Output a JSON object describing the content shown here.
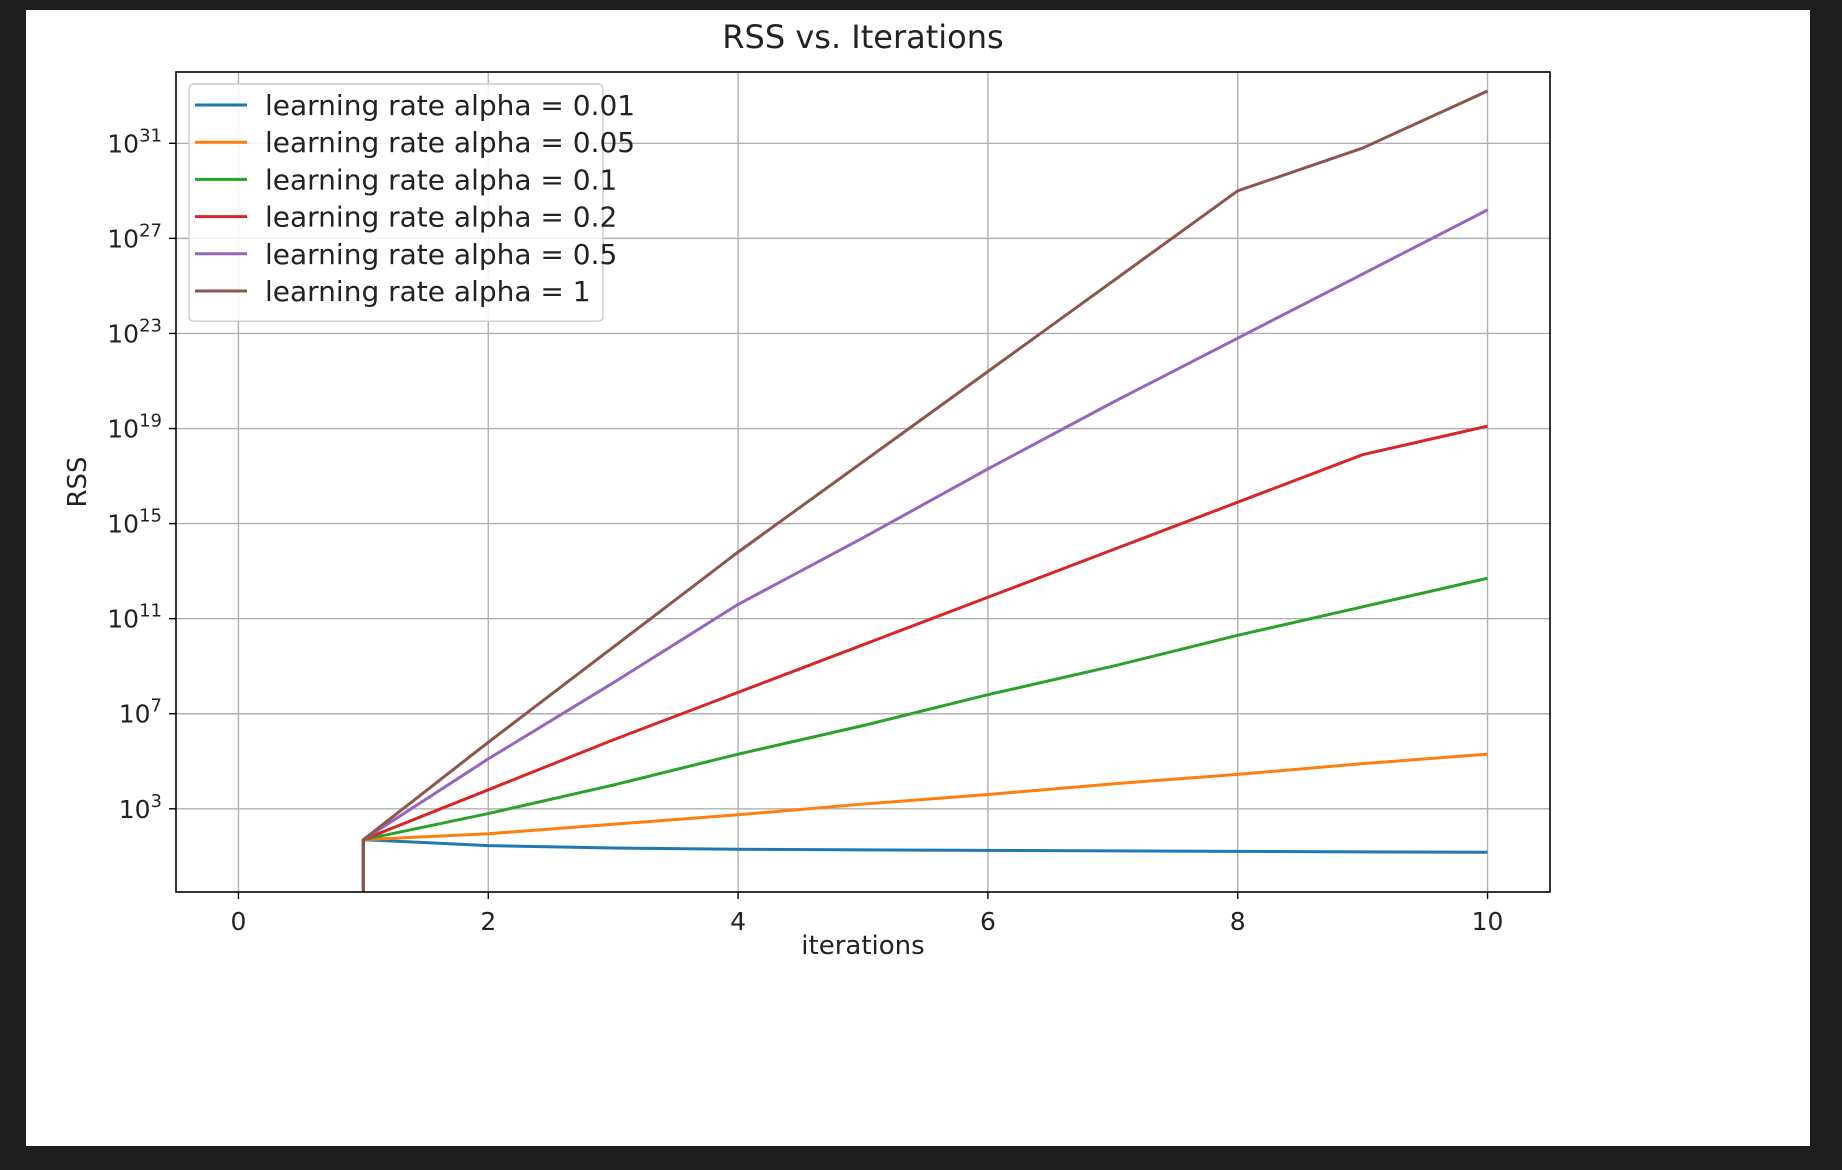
{
  "chart_data": {
    "type": "line",
    "title": "RSS vs. Iterations",
    "xlabel": "iterations",
    "ylabel": "RSS",
    "xlim": [
      -0.5,
      10.5
    ],
    "ylim_log10": [
      -0.5,
      34.0
    ],
    "yscale": "log",
    "grid": true,
    "legend_position": "top-left",
    "xticks": [
      0,
      2,
      4,
      6,
      8,
      10
    ],
    "xtick_labels": [
      "0",
      "2",
      "4",
      "6",
      "8",
      "10"
    ],
    "yticks_exponent": [
      3,
      7,
      11,
      15,
      19,
      23,
      27,
      31
    ],
    "ytick_base": "10",
    "ytick_exponents": [
      "3",
      "7",
      "11",
      "15",
      "19",
      "23",
      "27",
      "31"
    ],
    "x": [
      1,
      2,
      3,
      4,
      5,
      6,
      7,
      8,
      9,
      10
    ],
    "series": [
      {
        "name": "learning rate alpha = 0.01",
        "color": "#1f77b4",
        "log10_values": [
          1.7,
          1.45,
          1.35,
          1.3,
          1.27,
          1.25,
          1.23,
          1.21,
          1.19,
          1.17
        ]
      },
      {
        "name": "learning rate alpha = 0.05",
        "color": "#ff7f0e",
        "log10_values": [
          1.7,
          1.95,
          2.35,
          2.75,
          3.2,
          3.6,
          4.05,
          4.45,
          4.9,
          5.3
        ]
      },
      {
        "name": "learning rate alpha = 0.1",
        "color": "#2ca02c",
        "log10_values": [
          1.7,
          2.8,
          4.0,
          5.3,
          6.5,
          7.8,
          9.0,
          10.3,
          11.5,
          12.7
        ]
      },
      {
        "name": "learning rate alpha = 0.2",
        "color": "#d62728",
        "log10_values": [
          1.7,
          3.8,
          5.9,
          7.9,
          9.9,
          11.9,
          13.9,
          15.9,
          17.9,
          19.1
        ]
      },
      {
        "name": "learning rate alpha = 0.5",
        "color": "#9467bd",
        "log10_values": [
          1.7,
          5.1,
          8.3,
          11.6,
          14.4,
          17.3,
          20.1,
          22.8,
          25.5,
          28.2
        ]
      },
      {
        "name": "learning rate alpha = 1",
        "color": "#8c564b",
        "log10_values": [
          1.7,
          5.8,
          9.8,
          13.8,
          17.6,
          21.4,
          25.2,
          29.0,
          30.8,
          33.2
        ]
      }
    ]
  }
}
